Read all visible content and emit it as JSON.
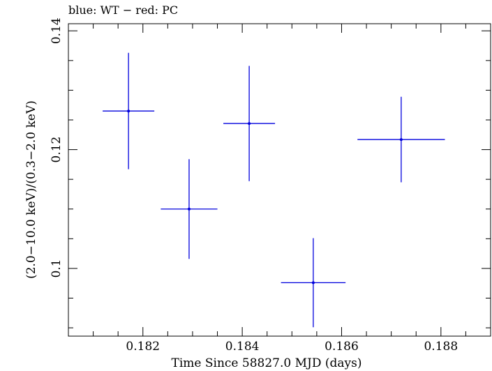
{
  "chart_data": {
    "type": "scatter",
    "title": "blue: WT − red: PC",
    "xlabel": "Time Since 58827.0 MJD (days)",
    "ylabel": "(2.0−10.0 keV)/(0.3−2.0 keV)",
    "xlim": [
      0.1805,
      0.189
    ],
    "ylim": [
      0.0886,
      0.1412
    ],
    "x_ticks": [
      {
        "value": 0.182,
        "label": "0.182"
      },
      {
        "value": 0.184,
        "label": "0.184"
      },
      {
        "value": 0.186,
        "label": "0.186"
      },
      {
        "value": 0.188,
        "label": "0.188"
      }
    ],
    "y_ticks": [
      {
        "value": 0.1,
        "label": "0.1"
      },
      {
        "value": 0.12,
        "label": "0.12"
      },
      {
        "value": 0.14,
        "label": "0.14"
      }
    ],
    "grid": false,
    "series": [
      {
        "color": "#0000dd",
        "points": [
          {
            "x": 0.18171,
            "y": 0.1265,
            "xerr": 0.00052,
            "yerr_low": 0.0098,
            "yerr_high": 0.0098
          },
          {
            "x": 0.18293,
            "y": 0.11,
            "xerr": 0.00057,
            "yerr_low": 0.0084,
            "yerr_high": 0.0084
          },
          {
            "x": 0.18414,
            "y": 0.1244,
            "xerr": 0.00052,
            "yerr_low": 0.0097,
            "yerr_high": 0.0097
          },
          {
            "x": 0.18543,
            "y": 0.0976,
            "xerr": 0.00065,
            "yerr_low": 0.0075,
            "yerr_high": 0.0075
          },
          {
            "x": 0.1872,
            "y": 0.1217,
            "xerr": 0.00088,
            "yerr_low": 0.0072,
            "yerr_high": 0.0072
          }
        ]
      }
    ]
  }
}
